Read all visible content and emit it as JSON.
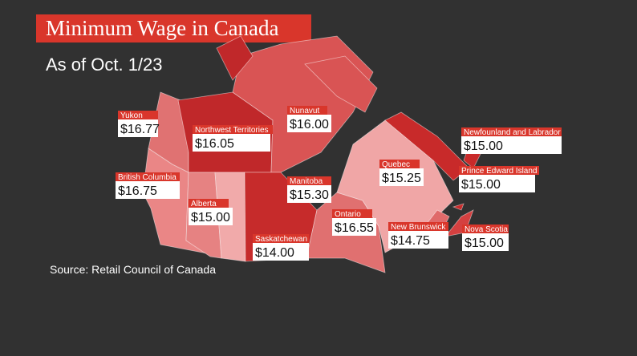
{
  "header": {
    "title": "Minimum Wage in Canada",
    "subtitle": "As of Oct. 1/23"
  },
  "source": "Source: Retail Council of Canada",
  "regions": [
    {
      "name": "Yukon",
      "wage": "$16.77"
    },
    {
      "name": "Northwest Territories",
      "wage": "$16.05"
    },
    {
      "name": "Nunavut",
      "wage": "$16.00"
    },
    {
      "name": "Newfounland and Labrador",
      "wage": "$15.00"
    },
    {
      "name": "Quebec",
      "wage": "$15.25"
    },
    {
      "name": "Prince Edward Island",
      "wage": "$15.00"
    },
    {
      "name": "British Columbia",
      "wage": "$16.75"
    },
    {
      "name": "Alberta",
      "wage": "$15.00"
    },
    {
      "name": "Manitoba",
      "wage": "$15.30"
    },
    {
      "name": "Ontario",
      "wage": "$16.55"
    },
    {
      "name": "Saskatchewan",
      "wage": "$14.00"
    },
    {
      "name": "New Brunswick",
      "wage": "$14.75"
    },
    {
      "name": "Nova Scotia",
      "wage": "$15.00"
    }
  ]
}
